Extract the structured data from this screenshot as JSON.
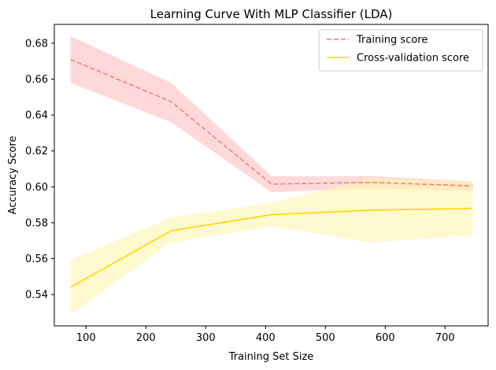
{
  "chart_data": {
    "type": "line",
    "title": "Learning Curve With MLP Classifier (LDA)",
    "xlabel": "Training Set Size",
    "ylabel": "Accuracy Score",
    "xlim": [
      47,
      772
    ],
    "ylim": [
      0.5225,
      0.6905
    ],
    "xticks": [
      100,
      200,
      300,
      400,
      500,
      600,
      700
    ],
    "yticks": [
      0.54,
      0.56,
      0.58,
      0.6,
      0.62,
      0.64,
      0.66,
      0.68
    ],
    "grid": false,
    "legend_position": "top-right",
    "x": [
      74,
      242,
      410,
      578,
      746
    ],
    "series": [
      {
        "name": "Training score",
        "style": "dashed",
        "color": "#f08080",
        "band_color": "#ffc0c0",
        "values": [
          0.671,
          0.6475,
          0.6015,
          0.6025,
          0.6005
        ],
        "upper": [
          0.684,
          0.658,
          0.606,
          0.606,
          0.603
        ],
        "lower": [
          0.658,
          0.636,
          0.597,
          0.599,
          0.598
        ]
      },
      {
        "name": "Cross-validation score",
        "style": "solid",
        "color": "#ffd700",
        "band_color": "#fff5b0",
        "values": [
          0.544,
          0.5755,
          0.5845,
          0.587,
          0.588
        ],
        "upper": [
          0.559,
          0.583,
          0.591,
          0.605,
          0.603
        ],
        "lower": [
          0.529,
          0.569,
          0.578,
          0.569,
          0.573
        ]
      }
    ]
  }
}
